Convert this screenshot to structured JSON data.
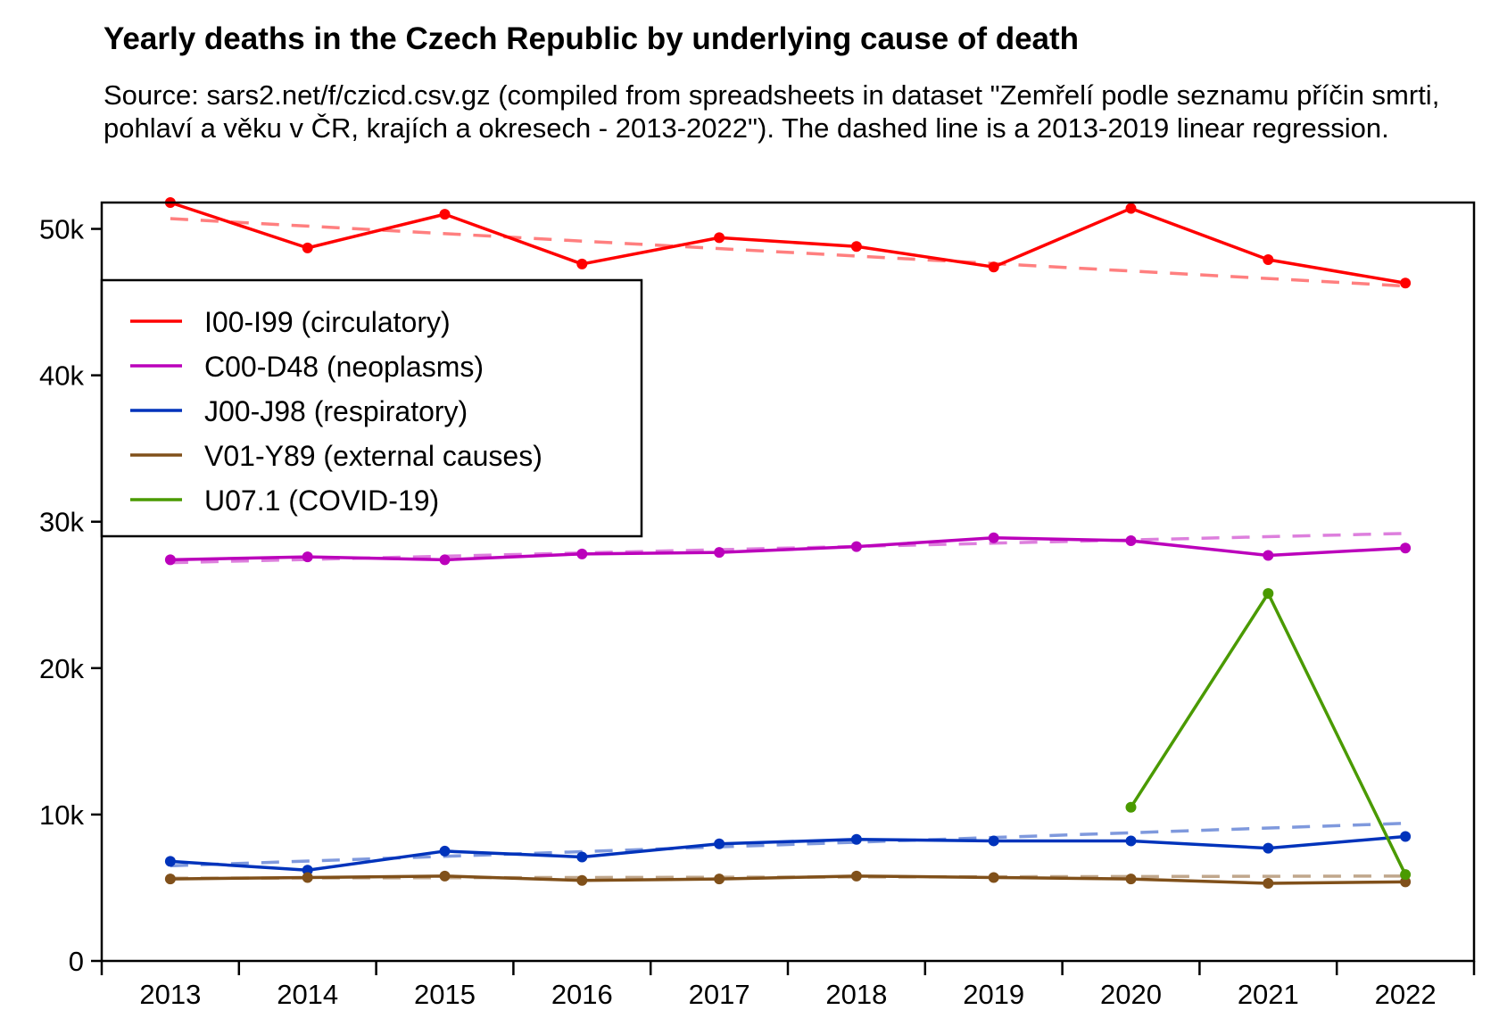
{
  "chart_data": {
    "type": "line",
    "title": "Yearly deaths in the Czech Republic by underlying cause of death",
    "subtitle": "Source: sars2.net/f/czicd.csv.gz (compiled from spreadsheets in dataset \"Zemřelí podle seznamu příčin smrti, pohlaví a věku v ČR, krajích a okresech - 2013-2022\"). The dashed line is a 2013-2019 linear regression.",
    "xlabel": "",
    "ylabel": "",
    "x": [
      2013,
      2014,
      2015,
      2016,
      2017,
      2018,
      2019,
      2020,
      2021,
      2022
    ],
    "x_tick_labels": [
      "2013",
      "2014",
      "2015",
      "2016",
      "2017",
      "2018",
      "2019",
      "2020",
      "2021",
      "2022"
    ],
    "ylim": [
      0,
      51800
    ],
    "y_ticks": [
      0,
      10000,
      20000,
      30000,
      40000,
      50000
    ],
    "y_tick_labels": [
      "0",
      "10k",
      "20k",
      "30k",
      "40k",
      "50k"
    ],
    "grid": false,
    "legend_position": "upper-left",
    "series": [
      {
        "name": "I00-I99 (circulatory)",
        "color": "#ff0000",
        "trend_color": "#ff7f7f",
        "values": [
          51800,
          48700,
          51000,
          47600,
          49400,
          48800,
          47400,
          51400,
          47900,
          46300
        ],
        "trend": [
          50700,
          46100
        ]
      },
      {
        "name": "C00-D48 (neoplasms)",
        "color": "#bb00bb",
        "trend_color": "#dd7fdd",
        "values": [
          27400,
          27600,
          27400,
          27800,
          27900,
          28300,
          28900,
          28700,
          27700,
          28200
        ],
        "trend": [
          27200,
          29200
        ]
      },
      {
        "name": "J00-J98 (respiratory)",
        "color": "#0033bb",
        "trend_color": "#7f99dd",
        "values": [
          6800,
          6200,
          7500,
          7100,
          8000,
          8300,
          8200,
          8200,
          7700,
          8500
        ],
        "trend": [
          6500,
          9400
        ]
      },
      {
        "name": "V01-Y89 (external causes)",
        "color": "#80501a",
        "trend_color": "#c0a78c",
        "values": [
          5600,
          5700,
          5800,
          5500,
          5600,
          5800,
          5700,
          5600,
          5300,
          5400
        ],
        "trend": [
          5650,
          5800
        ]
      },
      {
        "name": "U07.1 (COVID-19)",
        "color": "#4a9a00",
        "trend_color": null,
        "values": [
          null,
          null,
          null,
          null,
          null,
          null,
          null,
          10500,
          25100,
          5900
        ],
        "trend": null
      }
    ]
  }
}
